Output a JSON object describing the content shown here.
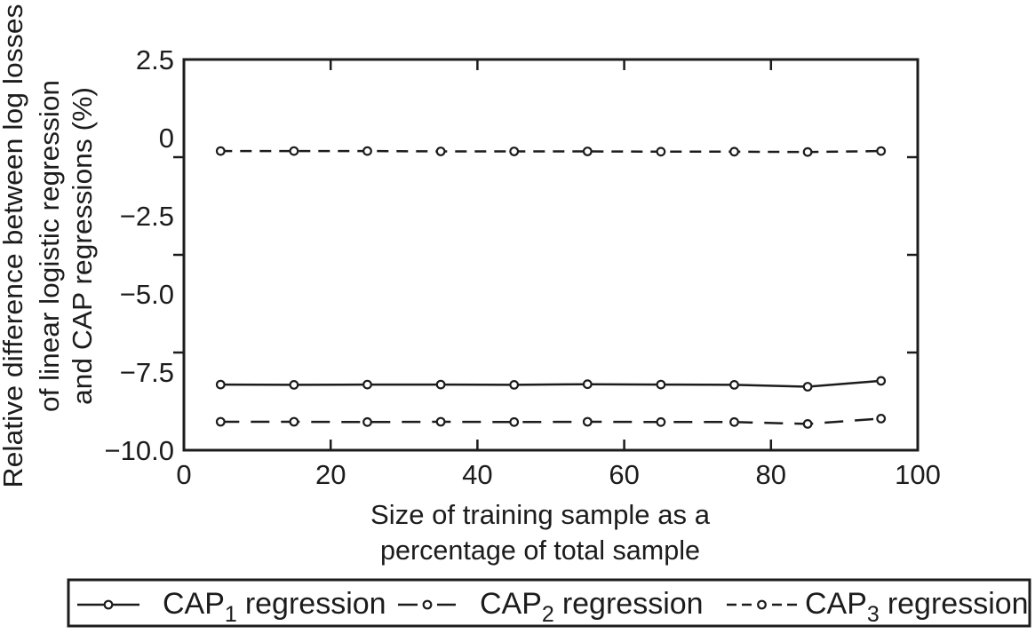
{
  "figure": {
    "background": "#ffffff",
    "ink_color": "#1c1c1c"
  },
  "chart_data": {
    "type": "line",
    "title": "",
    "xlabel_lines": [
      "Size of training sample as a",
      "percentage of total sample"
    ],
    "ylabel_lines": [
      "Relative difference between log losses",
      "of linear logistic regression",
      "and CAP regressions (%)"
    ],
    "xlim": [
      0,
      100
    ],
    "ylim": [
      -10.0,
      2.5
    ],
    "grid": false,
    "legend_position": "bottom-outside-framed-box",
    "x_ticks": [
      0,
      20,
      40,
      60,
      80,
      100
    ],
    "x_tick_labels": [
      "0",
      "20",
      "40",
      "60",
      "80",
      "100"
    ],
    "y_ticks": [
      2.5,
      0,
      -2.5,
      -5.0,
      -7.5,
      -10.0
    ],
    "y_tick_labels": [
      "2.5",
      "0",
      "−2.5",
      "−5.0",
      "−7.5",
      "−10.0"
    ],
    "x": [
      5,
      15,
      25,
      35,
      45,
      55,
      65,
      75,
      85,
      95
    ],
    "series": [
      {
        "name": "CAP1 regression",
        "line_style": "solid",
        "marker": "open-circle",
        "values": [
          -7.9,
          -7.91,
          -7.9,
          -7.9,
          -7.91,
          -7.89,
          -7.9,
          -7.91,
          -7.97,
          -7.78
        ]
      },
      {
        "name": "CAP2 regression",
        "line_style": "long-dash",
        "marker": "open-circle",
        "values": [
          -9.09,
          -9.09,
          -9.1,
          -9.09,
          -9.1,
          -9.09,
          -9.1,
          -9.1,
          -9.16,
          -8.99
        ]
      },
      {
        "name": "CAP3 regression",
        "line_style": "short-dash",
        "marker": "open-circle",
        "values": [
          -0.43,
          -0.43,
          -0.43,
          -0.44,
          -0.44,
          -0.44,
          -0.45,
          -0.45,
          -0.46,
          -0.43
        ]
      }
    ]
  },
  "legend": {
    "items": [
      {
        "cap": "CAP",
        "sub": "1",
        "rest": "regression"
      },
      {
        "cap": "CAP",
        "sub": "2",
        "rest": "regression"
      },
      {
        "cap": "CAP",
        "sub": "3",
        "rest": "regression"
      }
    ]
  }
}
